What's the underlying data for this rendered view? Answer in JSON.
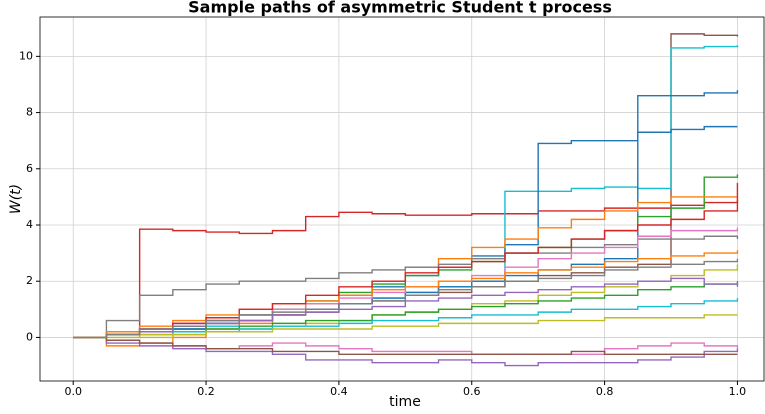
{
  "chart_data": {
    "type": "line",
    "drawstyle": "steps-post",
    "grid": true,
    "title": "Sample paths of asymmetric Student t process",
    "xlabel": "time",
    "ylabel": "W(t)",
    "xlim": [
      -0.05,
      1.04
    ],
    "ylim": [
      -1.55,
      11.4
    ],
    "xticks": [
      {
        "value": 0,
        "label": "0.0"
      },
      0.2,
      0.4,
      0.6,
      0.8,
      {
        "value": 1,
        "label": "1.0"
      }
    ],
    "yticks": [
      0,
      2,
      4,
      6,
      8,
      10
    ],
    "x": [
      0,
      0.05,
      0.1,
      0.15,
      0.2,
      0.25,
      0.3,
      0.35,
      0.4,
      0.45,
      0.5,
      0.55,
      0.6,
      0.65,
      0.7,
      0.75,
      0.8,
      0.85,
      0.9,
      0.95,
      1
    ],
    "series": [
      {
        "color": "#d62728",
        "values": [
          0,
          0.1,
          3.85,
          3.8,
          3.75,
          3.7,
          3.8,
          4.3,
          4.45,
          4.4,
          4.35,
          4.35,
          4.4,
          4.4,
          4.5,
          4.5,
          4.6,
          4.6,
          4.7,
          4.8,
          4.9
        ]
      },
      {
        "color": "#8c564b",
        "values": [
          0,
          0.1,
          0.2,
          0.3,
          0.5,
          0.6,
          0.8,
          0.9,
          1.2,
          1.3,
          1.5,
          1.6,
          1.8,
          2,
          2.2,
          2.3,
          2.5,
          2.6,
          10.8,
          10.75,
          10.7
        ]
      },
      {
        "color": "#17becf",
        "values": [
          0,
          0.1,
          0.2,
          0.3,
          0.4,
          0.6,
          0.8,
          1,
          1.2,
          1.4,
          1.6,
          1.8,
          2,
          5.2,
          5.2,
          5.3,
          5.35,
          5.3,
          10.3,
          10.35,
          10.4
        ]
      },
      {
        "color": "#1f77b4",
        "values": [
          0,
          0.2,
          0.3,
          0.5,
          0.6,
          0.8,
          1,
          1.2,
          1.5,
          1.8,
          2.2,
          2.5,
          2.9,
          3.3,
          6.9,
          7,
          7,
          8.6,
          8.6,
          8.7,
          8.8
        ]
      },
      {
        "color": "#1f77b4",
        "values": [
          0,
          0.1,
          0.2,
          0.3,
          0.5,
          0.6,
          0.8,
          1,
          1.2,
          1.4,
          1.6,
          1.8,
          2,
          2.2,
          2.4,
          2.6,
          2.8,
          7.3,
          7.4,
          7.5,
          7.5
        ]
      },
      {
        "color": "#2ca02c",
        "values": [
          0,
          0.1,
          0.2,
          0.4,
          0.6,
          0.8,
          1,
          1.3,
          1.6,
          1.9,
          2.2,
          2.4,
          2.7,
          3,
          3.2,
          3.5,
          3.8,
          4.3,
          4.6,
          5.7,
          5.8
        ]
      },
      {
        "color": "#ff7f0e",
        "values": [
          0,
          -0.3,
          -0.2,
          0,
          0.3,
          0.5,
          0.8,
          1.2,
          1.5,
          2,
          2.5,
          2.8,
          3.2,
          3.5,
          3.9,
          4.2,
          4.5,
          4.8,
          5,
          5,
          5
        ]
      },
      {
        "color": "#7f7f7f",
        "values": [
          0,
          0.6,
          1.5,
          1.7,
          1.9,
          2,
          2,
          2.1,
          2.3,
          2.4,
          2.5,
          2.6,
          2.8,
          3,
          3,
          3.2,
          3.3,
          3.5,
          3.5,
          3.6,
          3.5
        ]
      },
      {
        "color": "#e377c2",
        "values": [
          0,
          0.2,
          0.3,
          0.5,
          0.7,
          0.8,
          1,
          1.2,
          1.4,
          1.6,
          1.8,
          2,
          2.2,
          2.5,
          2.8,
          3,
          3.2,
          3.6,
          3.8,
          3.8,
          3.9
        ]
      },
      {
        "color": "#9467bd",
        "values": [
          0,
          -0.2,
          -0.3,
          -0.4,
          -0.5,
          -0.5,
          -0.6,
          -0.8,
          -0.8,
          -0.9,
          -0.9,
          -0.8,
          -0.9,
          -1,
          -0.9,
          -0.9,
          -0.9,
          -0.8,
          -0.7,
          -0.5,
          -0.4
        ]
      },
      {
        "color": "#bcbd22",
        "values": [
          0,
          0.1,
          0,
          0.1,
          0.2,
          0.3,
          0.4,
          0.5,
          0.6,
          0.8,
          0.9,
          1,
          1.2,
          1.3,
          1.5,
          1.6,
          1.8,
          2,
          2.2,
          2.4,
          2.6
        ]
      },
      {
        "color": "#e377c2",
        "values": [
          0,
          -0.1,
          -0.2,
          -0.3,
          -0.4,
          -0.3,
          -0.2,
          -0.3,
          -0.4,
          -0.5,
          -0.5,
          -0.5,
          -0.6,
          -0.6,
          -0.6,
          -0.6,
          -0.4,
          -0.3,
          -0.2,
          -0.3,
          -0.4
        ]
      },
      {
        "color": "#8c564b",
        "values": [
          0,
          -0.1,
          -0.2,
          -0.3,
          -0.4,
          -0.4,
          -0.5,
          -0.5,
          -0.6,
          -0.6,
          -0.6,
          -0.6,
          -0.6,
          -0.6,
          -0.6,
          -0.5,
          -0.6,
          -0.6,
          -0.6,
          -0.6,
          -0.6
        ]
      },
      {
        "color": "#2ca02c",
        "values": [
          0,
          0.1,
          0.2,
          0.2,
          0.3,
          0.4,
          0.5,
          0.6,
          0.6,
          0.8,
          0.9,
          1,
          1.1,
          1.2,
          1.3,
          1.4,
          1.5,
          1.7,
          1.8,
          1.9,
          2
        ]
      },
      {
        "color": "#17becf",
        "values": [
          0,
          0.1,
          0.1,
          0.2,
          0.2,
          0.3,
          0.4,
          0.4,
          0.5,
          0.6,
          0.6,
          0.7,
          0.8,
          0.8,
          0.9,
          1,
          1,
          1.1,
          1.2,
          1.3,
          1.4
        ]
      },
      {
        "color": "#ff7f0e",
        "values": [
          0,
          0.2,
          0.4,
          0.6,
          0.8,
          1,
          1.2,
          1.3,
          1.5,
          1.7,
          1.8,
          2,
          2.1,
          2.3,
          2.4,
          2.5,
          2.7,
          2.8,
          2.9,
          3,
          3.1
        ]
      },
      {
        "color": "#9467bd",
        "values": [
          0,
          0.1,
          0.2,
          0.4,
          0.5,
          0.6,
          0.8,
          0.9,
          1,
          1.1,
          1.3,
          1.4,
          1.5,
          1.6,
          1.7,
          1.8,
          1.9,
          2,
          2.1,
          1.9,
          1.8
        ]
      },
      {
        "color": "#d62728",
        "values": [
          0,
          0.1,
          0.3,
          0.5,
          0.7,
          1,
          1.2,
          1.5,
          1.8,
          2,
          2.3,
          2.5,
          2.7,
          3,
          3.2,
          3.5,
          3.8,
          4,
          4.2,
          4.5,
          5.5
        ]
      },
      {
        "color": "#bcbd22",
        "values": [
          0,
          0,
          0.1,
          0.1,
          0.2,
          0.2,
          0.3,
          0.3,
          0.3,
          0.4,
          0.4,
          0.5,
          0.5,
          0.5,
          0.6,
          0.6,
          0.7,
          0.7,
          0.7,
          0.8,
          0.8
        ]
      },
      {
        "color": "#7f7f7f",
        "values": [
          0,
          0.1,
          0.3,
          0.4,
          0.6,
          0.8,
          0.9,
          1,
          1.2,
          1.3,
          1.5,
          1.7,
          1.8,
          2,
          2.1,
          2.2,
          2.4,
          2.5,
          2.6,
          2.7,
          2.8
        ]
      }
    ]
  }
}
